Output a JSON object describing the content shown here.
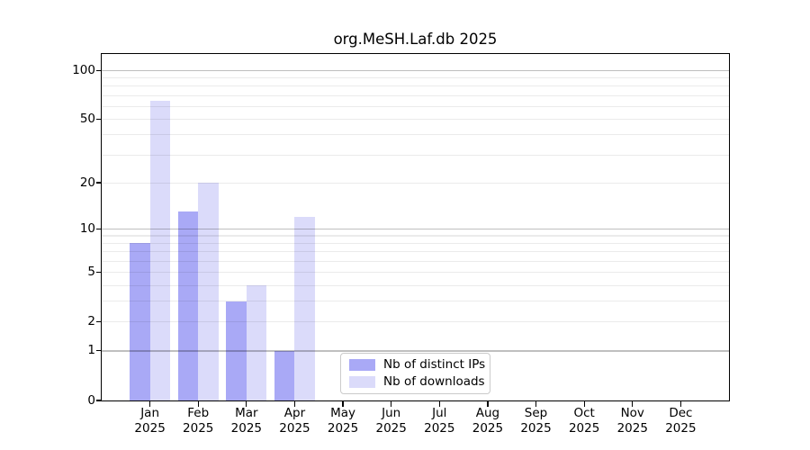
{
  "chart_data": {
    "type": "bar",
    "title": "org.MeSH.Laf.db 2025",
    "categories": [
      "Jan",
      "Feb",
      "Mar",
      "Apr",
      "May",
      "Jun",
      "Jul",
      "Aug",
      "Sep",
      "Oct",
      "Nov",
      "Dec"
    ],
    "year_label": "2025",
    "series": [
      {
        "name": "Nb of distinct IPs",
        "color": "#a9a9f6",
        "values": [
          8,
          13,
          3,
          1,
          0,
          0,
          0,
          0,
          0,
          0,
          0,
          0
        ]
      },
      {
        "name": "Nb of downloads",
        "color": "#dbdbfa",
        "values": [
          65,
          20,
          4,
          12,
          0,
          0,
          0,
          0,
          0,
          0,
          0,
          0
        ]
      }
    ],
    "y_axis": {
      "scale": "log1p",
      "ylim": [
        0,
        126
      ],
      "tick_values": [
        0,
        1,
        2,
        5,
        10,
        20,
        50,
        100
      ],
      "major_gridlines": [
        1,
        10,
        100
      ],
      "minor_gridlines": [
        2,
        3,
        4,
        5,
        6,
        7,
        8,
        9,
        20,
        30,
        40,
        50,
        60,
        70,
        80,
        90
      ]
    },
    "legend": {
      "position": "lower-center",
      "entries": [
        "Nb of distinct IPs",
        "Nb of downloads"
      ]
    },
    "grid": {
      "horizontal": true,
      "vertical": false
    },
    "colors": {
      "background": "#ffffff",
      "spine": "#000000",
      "major_grid": "rgba(0,0,0,0.25)",
      "minor_grid": "rgba(0,0,0,0.08)"
    }
  }
}
